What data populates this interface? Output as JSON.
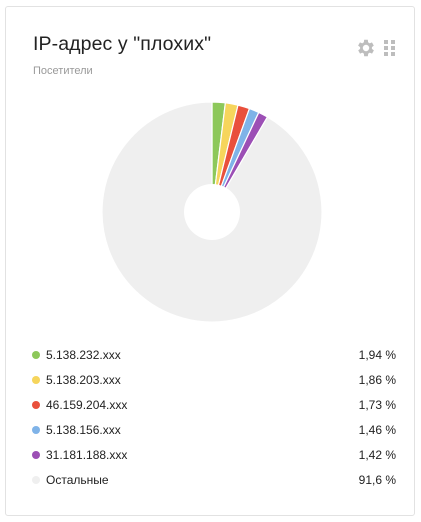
{
  "widget": {
    "title": "IP-адрес у \"плохих\"",
    "subtitle": "Посетители",
    "icons": {
      "settings": "gear-icon",
      "drag": "drag-handle-icon"
    }
  },
  "chart_data": {
    "type": "pie",
    "donut": true,
    "slices": [
      {
        "label": "5.138.232.xxx",
        "value": 1.94,
        "value_label": "1,94 %",
        "color": "#8dc85a"
      },
      {
        "label": "5.138.203.xxx",
        "value": 1.86,
        "value_label": "1,86 %",
        "color": "#f6d55c"
      },
      {
        "label": "46.159.204.xxx",
        "value": 1.73,
        "value_label": "1,73 %",
        "color": "#e9503c"
      },
      {
        "label": "5.138.156.xxx",
        "value": 1.46,
        "value_label": "1,46 %",
        "color": "#7fb3e8"
      },
      {
        "label": "31.181.188.xxx",
        "value": 1.42,
        "value_label": "1,42 %",
        "color": "#9c4fb5"
      },
      {
        "label": "Остальные",
        "value": 91.6,
        "value_label": "91,6 %",
        "color": "#efefef"
      }
    ]
  }
}
